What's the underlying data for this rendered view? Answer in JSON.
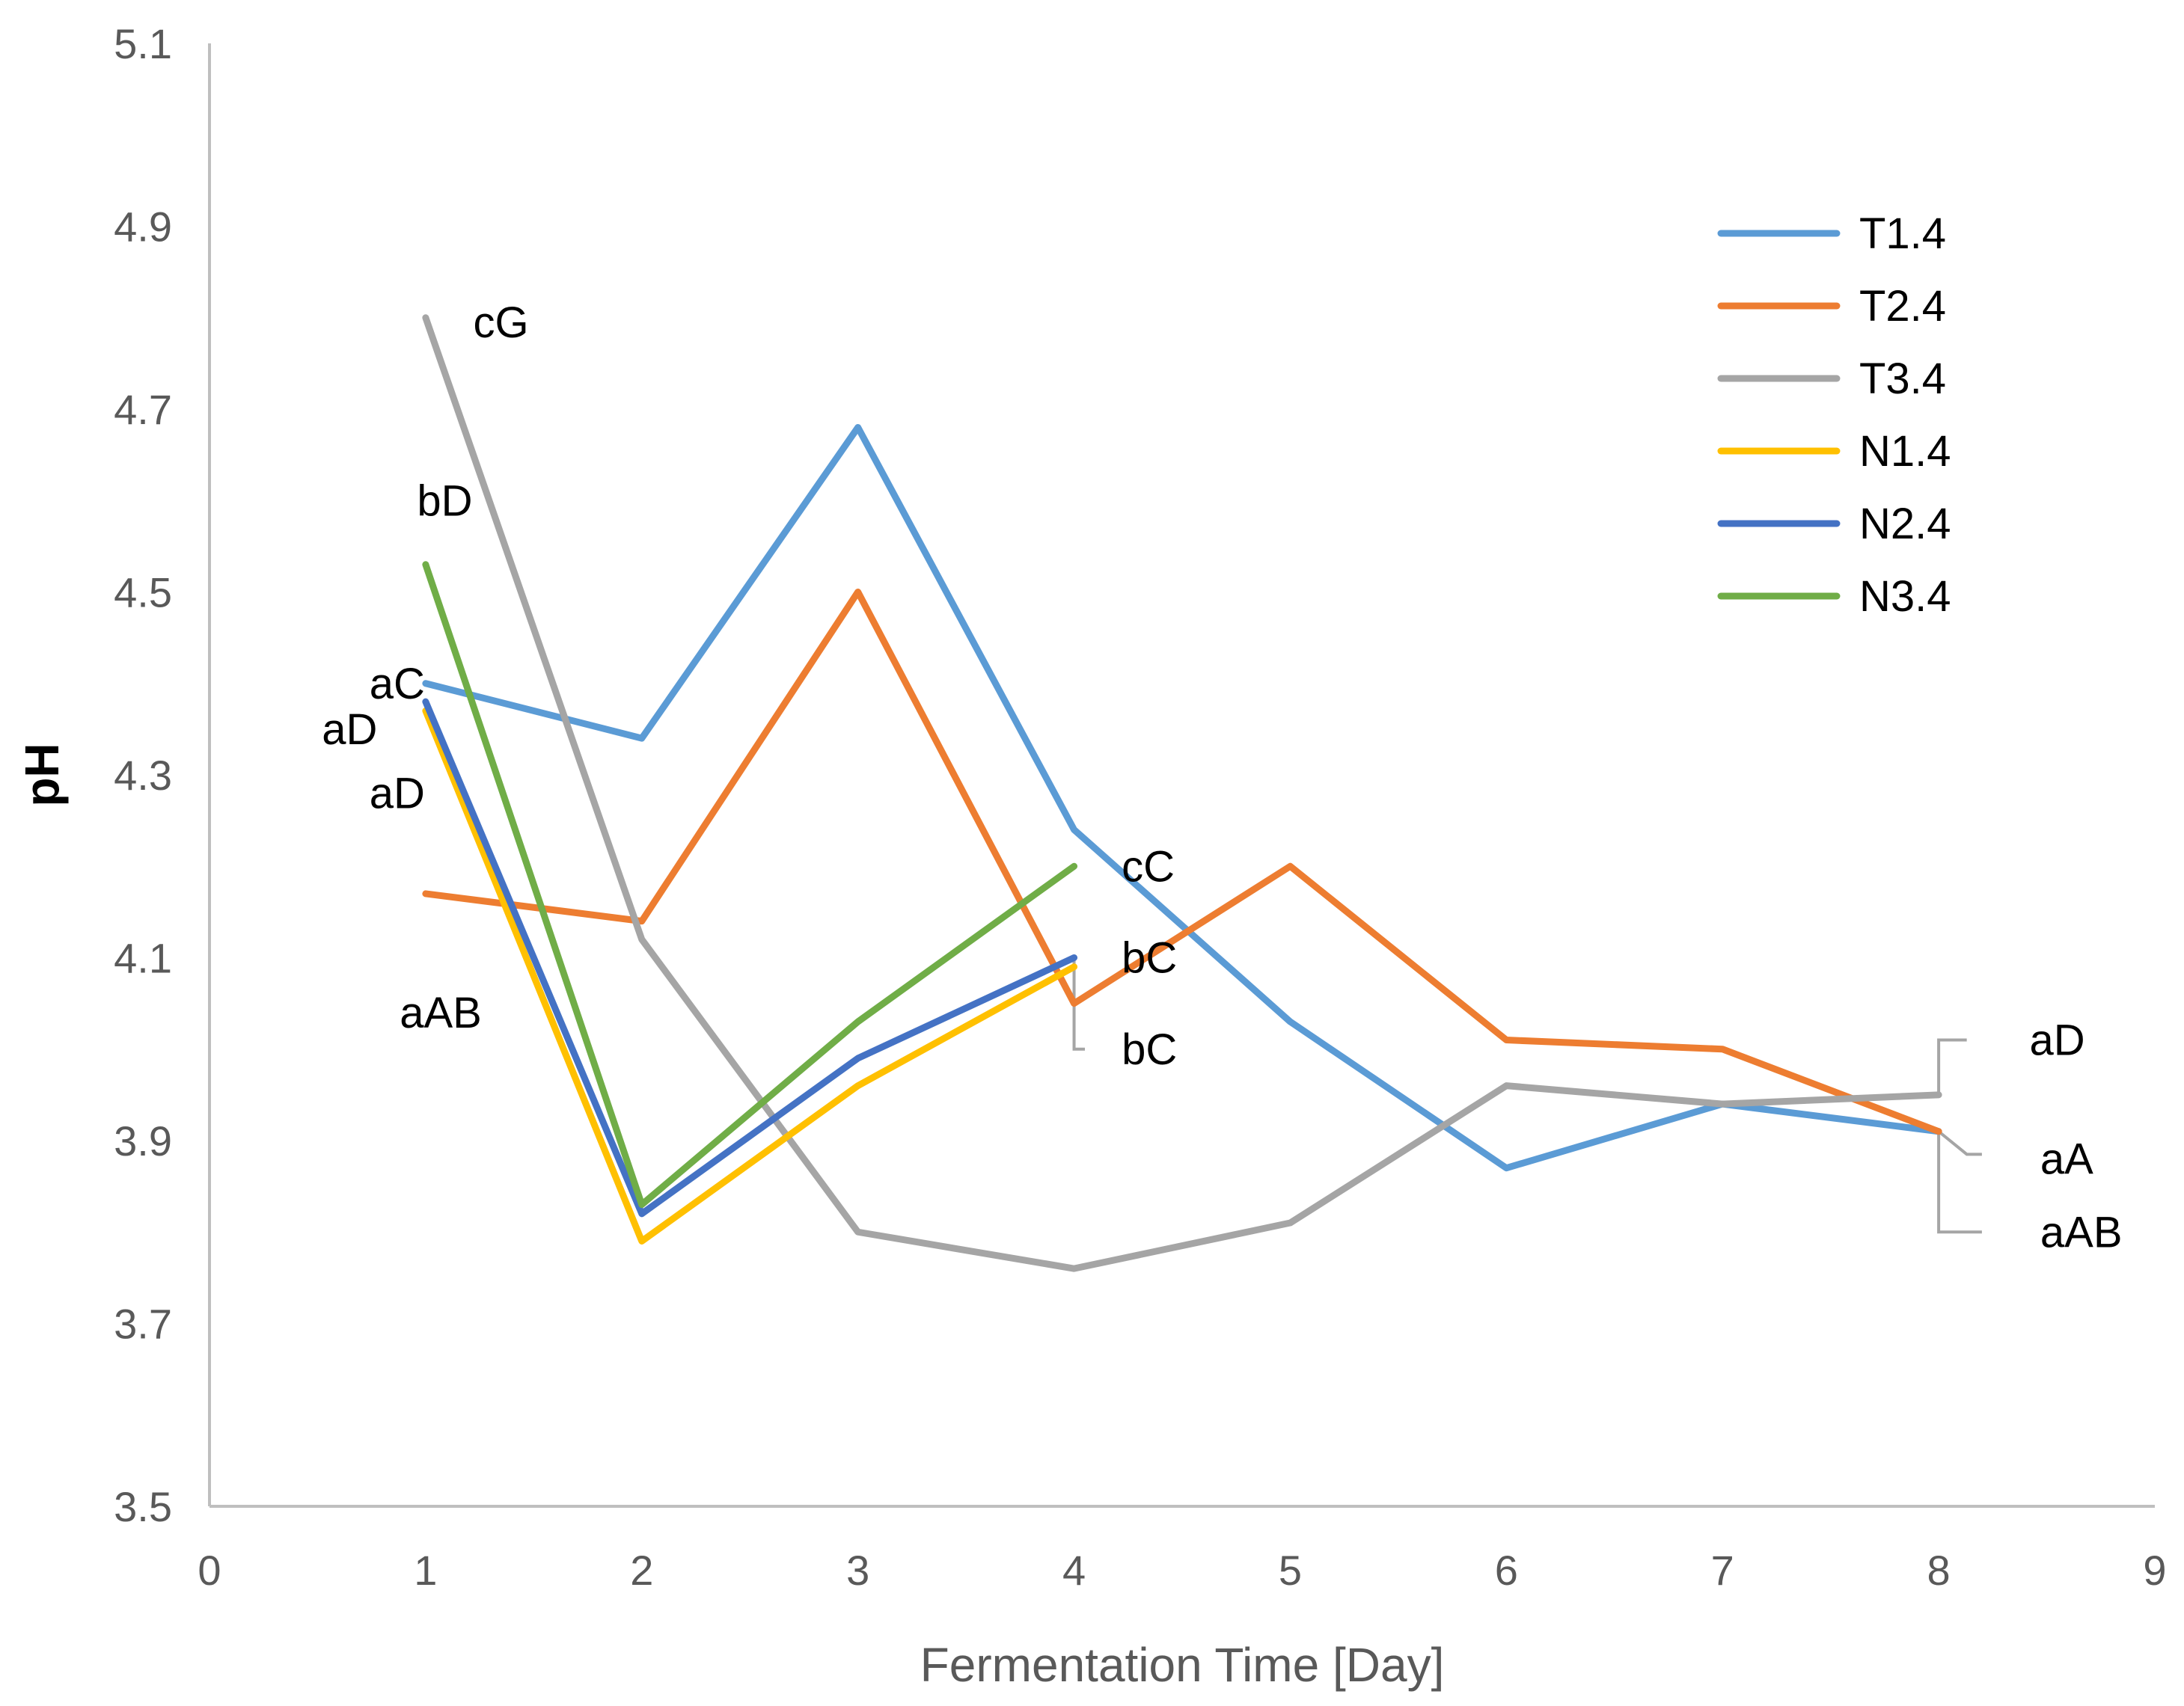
{
  "chart_data": {
    "type": "line",
    "title": "",
    "xlabel": "Fermentation Time [Day]",
    "ylabel": "pH",
    "xlim": [
      0,
      9
    ],
    "ylim": [
      3.5,
      5.1
    ],
    "x_ticks": [
      "0",
      "1",
      "2",
      "3",
      "4",
      "5",
      "6",
      "7",
      "8",
      "9"
    ],
    "y_ticks": [
      "3.5",
      "3.7",
      "3.9",
      "4.1",
      "4.3",
      "4.5",
      "4.7",
      "4.9",
      "5.1"
    ],
    "grid": false,
    "legend_position": "top-right",
    "series": [
      {
        "name": "T1.4",
        "color": "#5B9BD5",
        "x": [
          1,
          2,
          3,
          4,
          5,
          6,
          7,
          8
        ],
        "values": [
          4.4,
          4.34,
          4.68,
          4.24,
          4.03,
          3.87,
          3.94,
          3.91
        ]
      },
      {
        "name": "T2.4",
        "color": "#ED7D31",
        "x": [
          1,
          2,
          3,
          4,
          5,
          6,
          7,
          8
        ],
        "values": [
          4.17,
          4.14,
          4.5,
          4.05,
          4.2,
          4.01,
          4.0,
          3.91
        ]
      },
      {
        "name": "T3.4",
        "color": "#A5A5A5",
        "x": [
          1,
          2,
          3,
          4,
          5,
          6,
          7,
          8
        ],
        "values": [
          4.8,
          4.12,
          3.8,
          3.76,
          3.81,
          3.96,
          3.94,
          3.95
        ]
      },
      {
        "name": "N1.4",
        "color": "#FFC000",
        "x": [
          1,
          2,
          3,
          4
        ],
        "values": [
          4.37,
          3.79,
          3.96,
          4.09
        ]
      },
      {
        "name": "N2.4",
        "color": "#4472C4",
        "x": [
          1,
          2,
          3,
          4
        ],
        "values": [
          4.38,
          3.82,
          3.99,
          4.1
        ]
      },
      {
        "name": "N3.4",
        "color": "#70AD47",
        "x": [
          1,
          2,
          3,
          4
        ],
        "values": [
          4.53,
          3.83,
          4.03,
          4.2
        ]
      }
    ],
    "annotations": [
      {
        "text": "cG",
        "x": 1.22,
        "y": 4.795
      },
      {
        "text": "bD",
        "x": 0.96,
        "y": 4.6
      },
      {
        "text": "aC",
        "x": 0.74,
        "y": 4.4
      },
      {
        "text": "aD",
        "x": 0.52,
        "y": 4.35
      },
      {
        "text": "aD",
        "x": 0.74,
        "y": 4.28
      },
      {
        "text": "aAB",
        "x": 0.88,
        "y": 4.04
      },
      {
        "text": "cC",
        "x": 4.22,
        "y": 4.2
      },
      {
        "text": "bC",
        "x": 4.22,
        "y": 4.1
      },
      {
        "text": "bC",
        "x": 4.22,
        "y": 4.0
      },
      {
        "text": "aD",
        "x": 8.42,
        "y": 4.01
      },
      {
        "text": "aA",
        "x": 8.47,
        "y": 3.88
      },
      {
        "text": "aAB",
        "x": 8.47,
        "y": 3.8
      }
    ],
    "leader_lines": [
      {
        "points": [
          [
            4.0,
            4.1
          ],
          [
            4.0,
            4.0
          ],
          [
            4.05,
            4.0
          ]
        ]
      },
      {
        "points": [
          [
            8.0,
            3.95
          ],
          [
            8.0,
            4.01
          ],
          [
            8.13,
            4.01
          ]
        ]
      },
      {
        "points": [
          [
            8.0,
            3.91
          ],
          [
            8.13,
            3.885
          ],
          [
            8.2,
            3.885
          ]
        ]
      },
      {
        "points": [
          [
            8.0,
            3.91
          ],
          [
            8.0,
            3.8
          ],
          [
            8.2,
            3.8
          ]
        ]
      }
    ]
  }
}
